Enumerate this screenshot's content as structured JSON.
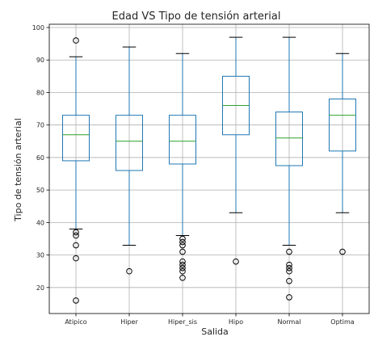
{
  "chart_data": {
    "type": "box",
    "title": "Edad VS Tipo de tensión arterial",
    "xlabel": "Salida",
    "ylabel": "Tipo de tensión arterial",
    "ylim": [
      12,
      101
    ],
    "yticks": [
      20,
      30,
      40,
      50,
      60,
      70,
      80,
      90,
      100
    ],
    "grid": true,
    "colors": {
      "box": "#1f77b4",
      "median": "#2ca02c",
      "whisker_cap": "#000000",
      "grid": "#b0b0b0",
      "outlier": "#000000"
    },
    "categories": [
      "Atipico",
      "Hiper",
      "Hiper_sis",
      "Hipo",
      "Normal",
      "Optima"
    ],
    "boxes": [
      {
        "label": "Atipico",
        "whislo": 38,
        "q1": 59,
        "med": 67,
        "q3": 73,
        "whishi": 91,
        "fliers": [
          96,
          37,
          36,
          33,
          29,
          16
        ]
      },
      {
        "label": "Hiper",
        "whislo": 33,
        "q1": 56,
        "med": 65,
        "q3": 73,
        "whishi": 94,
        "fliers": [
          25
        ]
      },
      {
        "label": "Hiper_sis",
        "whislo": 36,
        "q1": 58,
        "med": 65,
        "q3": 73,
        "whishi": 92,
        "fliers": [
          35,
          34,
          33,
          31,
          28,
          27,
          26,
          25,
          23
        ]
      },
      {
        "label": "Hipo",
        "whislo": 43,
        "q1": 67,
        "med": 76,
        "q3": 85,
        "whishi": 97,
        "fliers": [
          28
        ]
      },
      {
        "label": "Normal",
        "whislo": 33,
        "q1": 57.5,
        "med": 66,
        "q3": 74,
        "whishi": 97,
        "fliers": [
          31,
          27,
          26,
          25,
          22,
          17
        ]
      },
      {
        "label": "Optima",
        "whislo": 43,
        "q1": 62,
        "med": 73,
        "q3": 78,
        "whishi": 92,
        "fliers": [
          31
        ]
      }
    ]
  }
}
